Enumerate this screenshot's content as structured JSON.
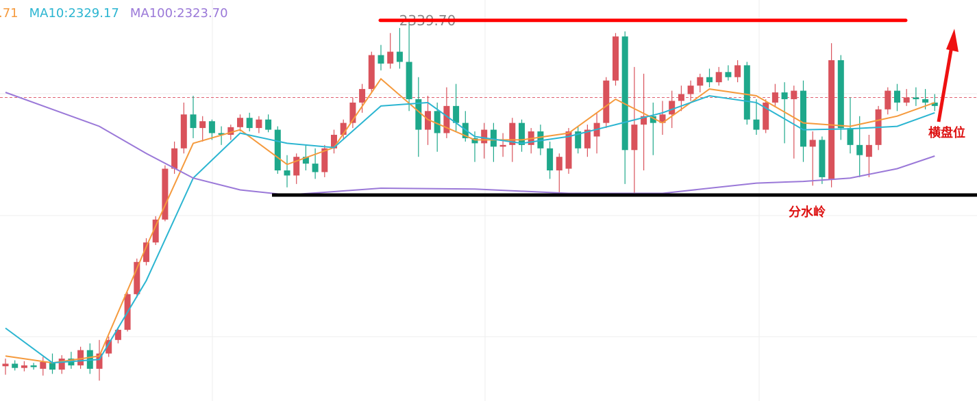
{
  "chart_data": {
    "type": "candlestick",
    "ylim": [
      2294.8,
      2342.1
    ],
    "up_color": "#d9525b",
    "down_color": "#1ea88b",
    "grid": true,
    "candles": [
      [
        2298.9,
        2299.8,
        2297.9,
        2299.2
      ],
      [
        2299.2,
        2299.6,
        2298.4,
        2298.7
      ],
      [
        2298.7,
        2299.5,
        2298.3,
        2299.0
      ],
      [
        2299.0,
        2299.3,
        2298.5,
        2298.8
      ],
      [
        2298.6,
        2300.0,
        2297.8,
        2299.4
      ],
      [
        2299.4,
        2300.4,
        2298.0,
        2298.5
      ],
      [
        2298.5,
        2300.2,
        2298.0,
        2299.8
      ],
      [
        2299.8,
        2300.6,
        2298.6,
        2299.0
      ],
      [
        2299.0,
        2301.2,
        2298.6,
        2300.8
      ],
      [
        2300.8,
        2301.6,
        2298.0,
        2298.6
      ],
      [
        2298.6,
        2302.0,
        2297.2,
        2300.4
      ],
      [
        2300.4,
        2302.4,
        2300.0,
        2302.0
      ],
      [
        2302.0,
        2303.5,
        2301.6,
        2303.2
      ],
      [
        2303.2,
        2307.6,
        2303.0,
        2307.4
      ],
      [
        2307.4,
        2311.6,
        2307.0,
        2311.2
      ],
      [
        2311.2,
        2314.0,
        2310.8,
        2313.5
      ],
      [
        2313.5,
        2316.6,
        2313.2,
        2316.2
      ],
      [
        2316.2,
        2322.6,
        2316.0,
        2322.2
      ],
      [
        2322.2,
        2325.4,
        2321.6,
        2324.6
      ],
      [
        2324.6,
        2330.0,
        2324.0,
        2328.6
      ],
      [
        2328.6,
        2330.8,
        2325.8,
        2327.0
      ],
      [
        2327.0,
        2328.4,
        2325.4,
        2327.8
      ],
      [
        2327.8,
        2328.0,
        2325.6,
        2326.4
      ],
      [
        2326.4,
        2327.2,
        2325.0,
        2326.2
      ],
      [
        2326.2,
        2327.4,
        2325.6,
        2327.1
      ],
      [
        2327.1,
        2328.6,
        2326.6,
        2328.2
      ],
      [
        2328.2,
        2328.8,
        2326.6,
        2327.0
      ],
      [
        2327.0,
        2328.4,
        2326.4,
        2328.0
      ],
      [
        2328.0,
        2328.6,
        2326.5,
        2326.8
      ],
      [
        2326.8,
        2327.2,
        2321.6,
        2322.0
      ],
      [
        2322.0,
        2323.8,
        2320.0,
        2321.4
      ],
      [
        2321.4,
        2324.0,
        2320.4,
        2323.6
      ],
      [
        2323.6,
        2325.0,
        2322.0,
        2322.8
      ],
      [
        2322.8,
        2324.6,
        2321.0,
        2321.8
      ],
      [
        2321.8,
        2325.0,
        2321.2,
        2324.6
      ],
      [
        2324.6,
        2326.8,
        2324.0,
        2326.2
      ],
      [
        2326.2,
        2328.0,
        2325.6,
        2327.6
      ],
      [
        2327.6,
        2330.6,
        2327.0,
        2330.0
      ],
      [
        2330.0,
        2332.2,
        2328.8,
        2331.6
      ],
      [
        2331.6,
        2336.0,
        2331.2,
        2335.6
      ],
      [
        2335.6,
        2336.8,
        2333.8,
        2334.6
      ],
      [
        2334.6,
        2338.2,
        2334.0,
        2336.0
      ],
      [
        2336.0,
        2338.8,
        2334.0,
        2334.8
      ],
      [
        2334.8,
        2339.7,
        2329.0,
        2330.4
      ],
      [
        2330.4,
        2333.0,
        2323.6,
        2326.8
      ],
      [
        2326.8,
        2330.8,
        2325.0,
        2329.0
      ],
      [
        2329.0,
        2330.0,
        2324.2,
        2326.4
      ],
      [
        2326.4,
        2331.8,
        2325.8,
        2329.6
      ],
      [
        2329.6,
        2332.2,
        2326.6,
        2327.6
      ],
      [
        2327.6,
        2329.0,
        2325.4,
        2325.8
      ],
      [
        2325.8,
        2326.6,
        2323.0,
        2325.2
      ],
      [
        2325.2,
        2327.6,
        2323.4,
        2326.8
      ],
      [
        2326.8,
        2327.6,
        2323.0,
        2324.8
      ],
      [
        2324.8,
        2326.4,
        2323.6,
        2325.0
      ],
      [
        2325.0,
        2328.2,
        2323.0,
        2327.6
      ],
      [
        2327.6,
        2328.0,
        2324.2,
        2325.0
      ],
      [
        2325.0,
        2327.0,
        2324.0,
        2326.6
      ],
      [
        2326.6,
        2327.4,
        2323.8,
        2324.6
      ],
      [
        2324.6,
        2325.4,
        2321.0,
        2322.0
      ],
      [
        2322.0,
        2324.0,
        2319.0,
        2323.6
      ],
      [
        2322.2,
        2327.0,
        2321.6,
        2326.6
      ],
      [
        2326.6,
        2327.2,
        2324.0,
        2324.6
      ],
      [
        2324.6,
        2327.4,
        2323.6,
        2326.8
      ],
      [
        2326.0,
        2328.8,
        2324.0,
        2327.6
      ],
      [
        2327.6,
        2333.0,
        2327.0,
        2332.6
      ],
      [
        2332.6,
        2338.2,
        2332.0,
        2337.8
      ],
      [
        2337.8,
        2338.4,
        2320.4,
        2324.4
      ],
      [
        2324.4,
        2334.2,
        2319.0,
        2327.4
      ],
      [
        2327.4,
        2333.4,
        2322.0,
        2328.4
      ],
      [
        2328.4,
        2330.0,
        2323.8,
        2327.6
      ],
      [
        2327.6,
        2330.2,
        2326.2,
        2328.6
      ],
      [
        2328.6,
        2331.4,
        2327.0,
        2330.2
      ],
      [
        2330.2,
        2332.0,
        2329.0,
        2331.0
      ],
      [
        2331.0,
        2332.6,
        2330.2,
        2332.0
      ],
      [
        2332.0,
        2333.4,
        2331.2,
        2333.0
      ],
      [
        2333.0,
        2334.0,
        2331.8,
        2332.4
      ],
      [
        2332.4,
        2334.2,
        2332.0,
        2333.6
      ],
      [
        2333.6,
        2334.4,
        2332.6,
        2333.0
      ],
      [
        2333.0,
        2335.0,
        2332.4,
        2334.4
      ],
      [
        2334.4,
        2334.8,
        2327.4,
        2328.0
      ],
      [
        2328.0,
        2330.4,
        2326.2,
        2326.8
      ],
      [
        2326.8,
        2330.4,
        2326.4,
        2330.0
      ],
      [
        2330.0,
        2332.2,
        2329.6,
        2331.2
      ],
      [
        2331.2,
        2332.4,
        2325.2,
        2330.4
      ],
      [
        2330.4,
        2332.0,
        2323.4,
        2331.4
      ],
      [
        2331.4,
        2332.6,
        2323.0,
        2324.8
      ],
      [
        2324.8,
        2326.6,
        2320.2,
        2325.6
      ],
      [
        2325.6,
        2326.0,
        2320.4,
        2321.2
      ],
      [
        2321.0,
        2337.0,
        2320.0,
        2335.0
      ],
      [
        2335.0,
        2335.6,
        2325.6,
        2327.0
      ],
      [
        2327.0,
        2330.6,
        2324.0,
        2325.0
      ],
      [
        2325.0,
        2328.4,
        2321.2,
        2323.8
      ],
      [
        2323.6,
        2326.2,
        2321.2,
        2325.0
      ],
      [
        2325.0,
        2329.6,
        2324.4,
        2329.2
      ],
      [
        2329.2,
        2331.8,
        2328.6,
        2331.4
      ],
      [
        2331.4,
        2332.2,
        2329.0,
        2330.0
      ],
      [
        2330.0,
        2331.6,
        2329.6,
        2330.6
      ],
      [
        2330.6,
        2331.8,
        2329.6,
        2330.4
      ],
      [
        2330.4,
        2331.6,
        2329.2,
        2330.0
      ],
      [
        2330.0,
        2331.0,
        2329.0,
        2329.6
      ]
    ],
    "series": [
      {
        "name": ".71",
        "color": "#f59a3d",
        "x": [
          0,
          5,
          10,
          15,
          20,
          25,
          30,
          35,
          40,
          45,
          50,
          55,
          60,
          65,
          70,
          75,
          80,
          85,
          90,
          95,
          99
        ],
        "values": [
          2300.1,
          2299.3,
          2300.1,
          2313.0,
          2325.2,
          2326.8,
          2322.7,
          2324.7,
          2332.8,
          2328.0,
          2325.6,
          2325.6,
          2326.4,
          2330.4,
          2327.6,
          2331.6,
          2330.8,
          2327.6,
          2327.2,
          2328.4,
          2330.0
        ]
      },
      {
        "name": "MA10:2329.17",
        "color": "#2bb5d1",
        "x": [
          0,
          5,
          10,
          15,
          20,
          25,
          30,
          35,
          40,
          45,
          50,
          55,
          60,
          65,
          70,
          75,
          80,
          85,
          90,
          95,
          99
        ],
        "values": [
          2303.4,
          2299.3,
          2299.7,
          2309.0,
          2321.1,
          2326.4,
          2325.2,
          2324.7,
          2329.6,
          2330.0,
          2326.0,
          2325.2,
          2326.0,
          2327.4,
          2328.8,
          2330.8,
          2330.0,
          2326.8,
          2326.9,
          2327.2,
          2328.8
        ]
      },
      {
        "name": "MA100:2323.70",
        "color": "#9a78d8",
        "x": [
          0,
          5,
          10,
          15,
          20,
          25,
          30,
          35,
          40,
          50,
          60,
          70,
          80,
          85,
          90,
          95,
          99
        ],
        "values": [
          2331.2,
          2329.2,
          2327.2,
          2324.0,
          2321.1,
          2319.7,
          2319.1,
          2319.5,
          2319.9,
          2319.8,
          2319.3,
          2319.3,
          2320.5,
          2320.7,
          2321.1,
          2322.2,
          2323.7
        ]
      }
    ],
    "high_level": {
      "value": 2339.7,
      "label": "2339.70"
    },
    "support_level": 2319.1,
    "current_price": 2330.6,
    "annotations": [
      "横盘位",
      "分水岭"
    ]
  }
}
